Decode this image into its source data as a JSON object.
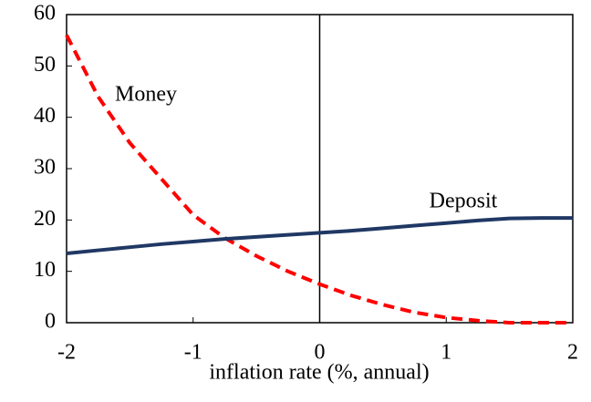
{
  "chart_data": {
    "type": "line",
    "xlabel": "inflation rate (%, annual)",
    "annotations": [
      "Money",
      "Deposit"
    ],
    "x": [
      -2,
      -1.75,
      -1.5,
      -1.25,
      -1,
      -0.75,
      -0.5,
      -0.25,
      0,
      0.25,
      0.5,
      0.75,
      1,
      1.25,
      1.5,
      1.75,
      2
    ],
    "series": [
      {
        "name": "Money",
        "color": "#ff0000",
        "dashed": true,
        "values": [
          56,
          44,
          35,
          28,
          21,
          16.5,
          13,
          10,
          7.5,
          5.3,
          3.5,
          2,
          1,
          0.4,
          0,
          0,
          0
        ]
      },
      {
        "name": "Deposit",
        "color": "#203864",
        "dashed": false,
        "values": [
          13.5,
          14.1,
          14.7,
          15.3,
          15.8,
          16.3,
          16.7,
          17.1,
          17.5,
          17.9,
          18.4,
          18.9,
          19.4,
          19.9,
          20.3,
          20.4,
          20.4
        ]
      }
    ],
    "xlim": [
      -2,
      2
    ],
    "xticks": [
      -2,
      -1,
      0,
      1,
      2
    ],
    "ylim": [
      0,
      60
    ],
    "yticks": [
      0,
      10,
      20,
      30,
      40,
      50,
      60
    ],
    "grid": false
  }
}
